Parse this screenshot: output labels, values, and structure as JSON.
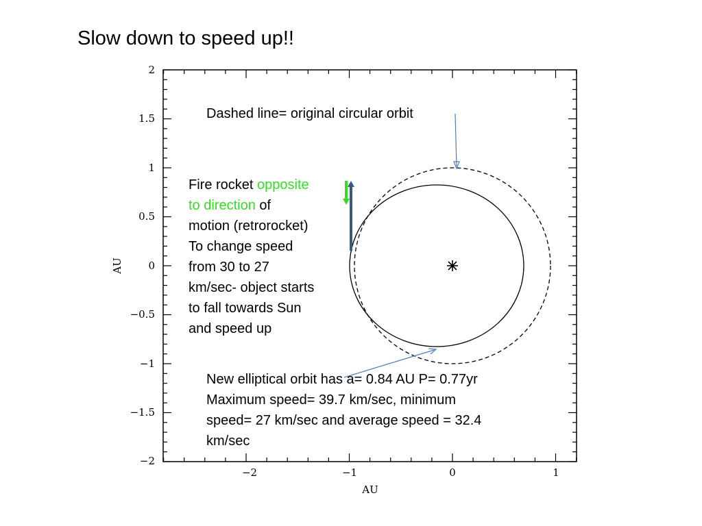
{
  "slide": {
    "title": "Slow down to speed up!!"
  },
  "plot": {
    "x_axis_label": "AU",
    "y_axis_label": "AU",
    "x_ticks": [
      "−2",
      "−1",
      "0",
      "1"
    ],
    "y_ticks": [
      "2",
      "1.5",
      "1",
      "0.5",
      "0",
      "−0.5",
      "−1",
      "−1.5",
      "−2"
    ]
  },
  "annotations": {
    "dashed_note": "Dashed line= original circular orbit",
    "fire_prefix": "Fire rocket ",
    "fire_green_1": "opposite",
    "fire_green_2": "to direction",
    "fire_suffix_1": " of",
    "fire_line_3": "motion (retrorocket)",
    "fire_line_4": "To change speed",
    "fire_line_5": "from 30 to 27",
    "fire_line_6": "km/sec- object starts",
    "fire_line_7": "to fall towards Sun",
    "fire_line_8": "and speed up",
    "elliptical_line_1": "New elliptical orbit has a= 0.84 AU  P=  0.77yr",
    "elliptical_line_2": "Maximum speed=   39.7 km/sec, minimum",
    "elliptical_line_3": "speed= 27 km/sec and average speed =  32.4",
    "elliptical_line_4": "km/sec"
  },
  "colors": {
    "pointer_arrow": "#4a7ebb",
    "velocity_arrow": "#3a5a80",
    "retro_arrow": "#33dd22",
    "highlight_text": "#33dd22"
  }
}
